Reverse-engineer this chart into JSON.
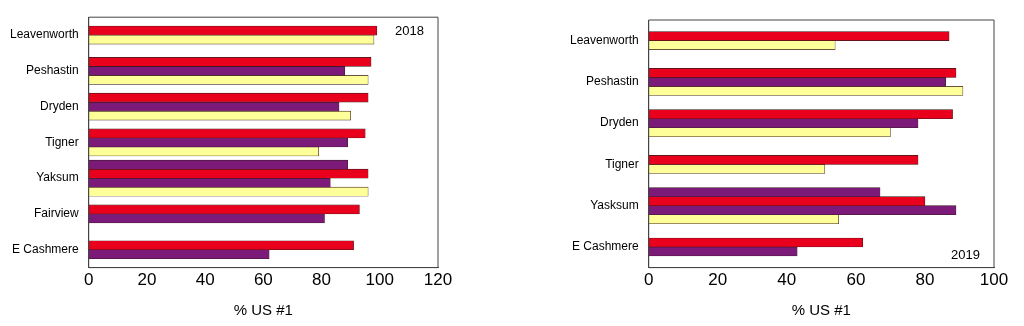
{
  "chart_data": [
    {
      "type": "bar",
      "orientation": "horizontal",
      "xlabel": "% US #1",
      "annotations": [
        "2018"
      ],
      "categories": [
        "Leavenworth",
        "Peshastin",
        "Dryden",
        "Tigner",
        "Yaksum",
        "Fairview",
        "E Cashmere"
      ],
      "xlim": [
        0,
        120
      ],
      "xticks": [
        0,
        20,
        40,
        60,
        80,
        100,
        120
      ],
      "grid": false,
      "legend": false,
      "series": [
        {
          "color": "#7b1a78",
          "values": [
            null,
            null,
            null,
            null,
            89,
            null,
            null
          ]
        },
        {
          "color": "#e8001c",
          "values": [
            99,
            97,
            96,
            95,
            96,
            93,
            91
          ]
        },
        {
          "color": "#7b1a78",
          "values": [
            null,
            88,
            86,
            89,
            83,
            81,
            62
          ]
        },
        {
          "color": "#ffff99",
          "values": [
            98,
            96,
            90,
            79,
            96,
            null,
            null
          ]
        }
      ]
    },
    {
      "type": "bar",
      "orientation": "horizontal",
      "xlabel": "% US #1",
      "annotations": [
        "2019"
      ],
      "categories": [
        "Leavenworth",
        "Peshastin",
        "Dryden",
        "Tigner",
        "Yasksum",
        "E Cashmere"
      ],
      "xlim": [
        0,
        100
      ],
      "xticks": [
        0,
        20,
        40,
        60,
        80,
        100
      ],
      "grid": false,
      "legend": false,
      "series": [
        {
          "color": "#7b1a78",
          "values": [
            null,
            null,
            null,
            null,
            67,
            null
          ]
        },
        {
          "color": "#e8001c",
          "values": [
            87,
            89,
            88,
            78,
            80,
            62
          ]
        },
        {
          "color": "#7b1a78",
          "values": [
            null,
            86,
            78,
            null,
            89,
            43
          ]
        },
        {
          "color": "#ffff99",
          "values": [
            54,
            91,
            70,
            51,
            55,
            null
          ]
        }
      ]
    }
  ]
}
